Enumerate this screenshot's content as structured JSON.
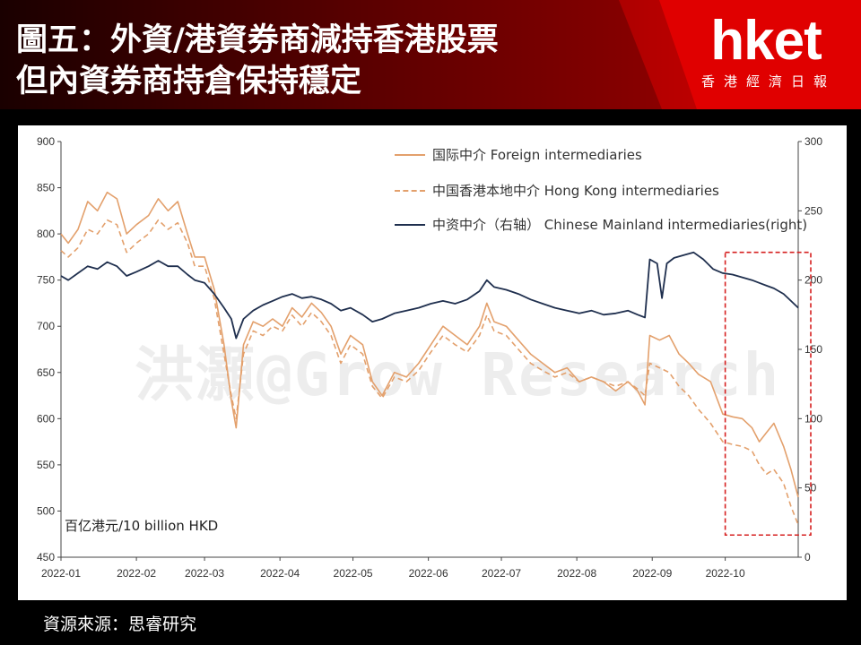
{
  "header": {
    "title_line1": "圖五：外資/港資券商減持香港股票",
    "title_line2": "但內資券商持倉保持穩定",
    "logo_text": "hket",
    "logo_subtitle": "香港經濟日報"
  },
  "footer": {
    "source": "資源來源：思睿研究"
  },
  "watermark": "洪灝@Grow Research",
  "colors": {
    "foreign": "#e3a06c",
    "hongkong": "#e3a06c",
    "mainland": "#1f2f4e",
    "highlight_box": "#d62020"
  },
  "chart_data": {
    "type": "line",
    "unit_label": "百亿港元/10 billion HKD",
    "x_ticks": [
      "2022-01",
      "2022-02",
      "2022-03",
      "2022-04",
      "2022-05",
      "2022-06",
      "2022-07",
      "2022-08",
      "2022-09",
      "2022-10"
    ],
    "xlim": [
      "2022-01-01",
      "2022-10-31"
    ],
    "ylim_left": [
      450,
      900
    ],
    "y_ticks_left": [
      450,
      500,
      550,
      600,
      650,
      700,
      750,
      800,
      850,
      900
    ],
    "ylim_right": [
      0,
      300
    ],
    "y_ticks_right": [
      0,
      50,
      100,
      150,
      200,
      250,
      300
    ],
    "grid": false,
    "legend_position": "top-center",
    "highlight_region": {
      "x_start": "2022-10-01",
      "x_end": "2022-10-31"
    },
    "series": [
      {
        "name": "国际中介 Foreign intermediaries",
        "axis": "left",
        "style": "solid",
        "points": [
          [
            "2022-01-01",
            800
          ],
          [
            "2022-01-04",
            790
          ],
          [
            "2022-01-08",
            805
          ],
          [
            "2022-01-12",
            835
          ],
          [
            "2022-01-16",
            825
          ],
          [
            "2022-01-20",
            845
          ],
          [
            "2022-01-24",
            838
          ],
          [
            "2022-01-28",
            800
          ],
          [
            "2022-02-01",
            810
          ],
          [
            "2022-02-06",
            820
          ],
          [
            "2022-02-10",
            838
          ],
          [
            "2022-02-14",
            825
          ],
          [
            "2022-02-18",
            835
          ],
          [
            "2022-02-22",
            800
          ],
          [
            "2022-02-25",
            775
          ],
          [
            "2022-03-01",
            775
          ],
          [
            "2022-03-05",
            740
          ],
          [
            "2022-03-09",
            680
          ],
          [
            "2022-03-12",
            620
          ],
          [
            "2022-03-14",
            590
          ],
          [
            "2022-03-17",
            680
          ],
          [
            "2022-03-21",
            705
          ],
          [
            "2022-03-25",
            700
          ],
          [
            "2022-03-29",
            708
          ],
          [
            "2022-04-02",
            700
          ],
          [
            "2022-04-06",
            720
          ],
          [
            "2022-04-10",
            710
          ],
          [
            "2022-04-14",
            725
          ],
          [
            "2022-04-18",
            715
          ],
          [
            "2022-04-22",
            700
          ],
          [
            "2022-04-26",
            670
          ],
          [
            "2022-04-30",
            690
          ],
          [
            "2022-05-05",
            680
          ],
          [
            "2022-05-09",
            640
          ],
          [
            "2022-05-13",
            625
          ],
          [
            "2022-05-18",
            650
          ],
          [
            "2022-05-23",
            645
          ],
          [
            "2022-05-28",
            660
          ],
          [
            "2022-06-02",
            680
          ],
          [
            "2022-06-07",
            700
          ],
          [
            "2022-06-12",
            690
          ],
          [
            "2022-06-17",
            680
          ],
          [
            "2022-06-22",
            700
          ],
          [
            "2022-06-25",
            725
          ],
          [
            "2022-06-28",
            705
          ],
          [
            "2022-07-03",
            700
          ],
          [
            "2022-07-08",
            685
          ],
          [
            "2022-07-13",
            670
          ],
          [
            "2022-07-18",
            660
          ],
          [
            "2022-07-23",
            650
          ],
          [
            "2022-07-28",
            655
          ],
          [
            "2022-08-02",
            640
          ],
          [
            "2022-08-07",
            645
          ],
          [
            "2022-08-12",
            640
          ],
          [
            "2022-08-17",
            630
          ],
          [
            "2022-08-22",
            640
          ],
          [
            "2022-08-26",
            630
          ],
          [
            "2022-08-29",
            615
          ],
          [
            "2022-08-31",
            690
          ],
          [
            "2022-09-04",
            685
          ],
          [
            "2022-09-08",
            690
          ],
          [
            "2022-09-12",
            670
          ],
          [
            "2022-09-16",
            660
          ],
          [
            "2022-09-20",
            648
          ],
          [
            "2022-09-25",
            640
          ],
          [
            "2022-09-30",
            605
          ],
          [
            "2022-10-04",
            602
          ],
          [
            "2022-10-08",
            600
          ],
          [
            "2022-10-12",
            590
          ],
          [
            "2022-10-15",
            575
          ],
          [
            "2022-10-18",
            585
          ],
          [
            "2022-10-21",
            595
          ],
          [
            "2022-10-25",
            570
          ],
          [
            "2022-10-28",
            545
          ],
          [
            "2022-10-31",
            515
          ]
        ]
      },
      {
        "name": "中国香港本地中介 Hong Kong intermediaries",
        "axis": "left",
        "style": "dashed",
        "points": [
          [
            "2022-01-01",
            782
          ],
          [
            "2022-01-04",
            775
          ],
          [
            "2022-01-08",
            785
          ],
          [
            "2022-01-12",
            805
          ],
          [
            "2022-01-16",
            800
          ],
          [
            "2022-01-20",
            815
          ],
          [
            "2022-01-24",
            810
          ],
          [
            "2022-01-28",
            780
          ],
          [
            "2022-02-01",
            790
          ],
          [
            "2022-02-06",
            800
          ],
          [
            "2022-02-10",
            815
          ],
          [
            "2022-02-14",
            805
          ],
          [
            "2022-02-18",
            812
          ],
          [
            "2022-02-22",
            790
          ],
          [
            "2022-02-25",
            765
          ],
          [
            "2022-03-01",
            765
          ],
          [
            "2022-03-05",
            730
          ],
          [
            "2022-03-09",
            670
          ],
          [
            "2022-03-12",
            625
          ],
          [
            "2022-03-14",
            600
          ],
          [
            "2022-03-17",
            670
          ],
          [
            "2022-03-21",
            695
          ],
          [
            "2022-03-25",
            690
          ],
          [
            "2022-03-29",
            700
          ],
          [
            "2022-04-02",
            695
          ],
          [
            "2022-04-06",
            712
          ],
          [
            "2022-04-10",
            700
          ],
          [
            "2022-04-14",
            715
          ],
          [
            "2022-04-18",
            705
          ],
          [
            "2022-04-22",
            690
          ],
          [
            "2022-04-26",
            660
          ],
          [
            "2022-04-30",
            680
          ],
          [
            "2022-05-05",
            670
          ],
          [
            "2022-05-09",
            635
          ],
          [
            "2022-05-13",
            622
          ],
          [
            "2022-05-18",
            645
          ],
          [
            "2022-05-23",
            640
          ],
          [
            "2022-05-28",
            652
          ],
          [
            "2022-06-02",
            672
          ],
          [
            "2022-06-07",
            690
          ],
          [
            "2022-06-12",
            680
          ],
          [
            "2022-06-17",
            672
          ],
          [
            "2022-06-22",
            690
          ],
          [
            "2022-06-25",
            712
          ],
          [
            "2022-06-28",
            695
          ],
          [
            "2022-07-03",
            690
          ],
          [
            "2022-07-08",
            675
          ],
          [
            "2022-07-13",
            660
          ],
          [
            "2022-07-18",
            652
          ],
          [
            "2022-07-23",
            645
          ],
          [
            "2022-07-28",
            650
          ],
          [
            "2022-08-02",
            640
          ],
          [
            "2022-08-07",
            645
          ],
          [
            "2022-08-12",
            640
          ],
          [
            "2022-08-17",
            635
          ],
          [
            "2022-08-22",
            640
          ],
          [
            "2022-08-26",
            632
          ],
          [
            "2022-08-29",
            625
          ],
          [
            "2022-08-31",
            660
          ],
          [
            "2022-09-04",
            655
          ],
          [
            "2022-09-08",
            650
          ],
          [
            "2022-09-12",
            635
          ],
          [
            "2022-09-16",
            625
          ],
          [
            "2022-09-20",
            610
          ],
          [
            "2022-09-25",
            595
          ],
          [
            "2022-09-30",
            575
          ],
          [
            "2022-10-04",
            572
          ],
          [
            "2022-10-08",
            570
          ],
          [
            "2022-10-12",
            565
          ],
          [
            "2022-10-15",
            550
          ],
          [
            "2022-10-18",
            540
          ],
          [
            "2022-10-21",
            545
          ],
          [
            "2022-10-25",
            530
          ],
          [
            "2022-10-28",
            505
          ],
          [
            "2022-10-31",
            485
          ]
        ]
      },
      {
        "name": "中资中介（右轴） Chinese Mainland intermediaries(right)",
        "axis": "right",
        "style": "solid",
        "points": [
          [
            "2022-01-01",
            203
          ],
          [
            "2022-01-04",
            200
          ],
          [
            "2022-01-08",
            205
          ],
          [
            "2022-01-12",
            210
          ],
          [
            "2022-01-16",
            208
          ],
          [
            "2022-01-20",
            213
          ],
          [
            "2022-01-24",
            210
          ],
          [
            "2022-01-28",
            203
          ],
          [
            "2022-02-01",
            206
          ],
          [
            "2022-02-06",
            210
          ],
          [
            "2022-02-10",
            214
          ],
          [
            "2022-02-14",
            210
          ],
          [
            "2022-02-18",
            210
          ],
          [
            "2022-02-22",
            204
          ],
          [
            "2022-02-25",
            200
          ],
          [
            "2022-03-01",
            198
          ],
          [
            "2022-03-05",
            190
          ],
          [
            "2022-03-09",
            180
          ],
          [
            "2022-03-12",
            172
          ],
          [
            "2022-03-14",
            158
          ],
          [
            "2022-03-17",
            172
          ],
          [
            "2022-03-21",
            178
          ],
          [
            "2022-03-25",
            182
          ],
          [
            "2022-03-29",
            185
          ],
          [
            "2022-04-02",
            188
          ],
          [
            "2022-04-06",
            190
          ],
          [
            "2022-04-10",
            187
          ],
          [
            "2022-04-14",
            188
          ],
          [
            "2022-04-18",
            186
          ],
          [
            "2022-04-22",
            183
          ],
          [
            "2022-04-26",
            178
          ],
          [
            "2022-04-30",
            180
          ],
          [
            "2022-05-05",
            175
          ],
          [
            "2022-05-09",
            170
          ],
          [
            "2022-05-13",
            172
          ],
          [
            "2022-05-18",
            176
          ],
          [
            "2022-05-23",
            178
          ],
          [
            "2022-05-28",
            180
          ],
          [
            "2022-06-02",
            183
          ],
          [
            "2022-06-07",
            185
          ],
          [
            "2022-06-12",
            183
          ],
          [
            "2022-06-17",
            186
          ],
          [
            "2022-06-22",
            192
          ],
          [
            "2022-06-25",
            200
          ],
          [
            "2022-06-28",
            195
          ],
          [
            "2022-07-03",
            193
          ],
          [
            "2022-07-08",
            190
          ],
          [
            "2022-07-13",
            186
          ],
          [
            "2022-07-18",
            183
          ],
          [
            "2022-07-23",
            180
          ],
          [
            "2022-07-28",
            178
          ],
          [
            "2022-08-02",
            176
          ],
          [
            "2022-08-07",
            178
          ],
          [
            "2022-08-12",
            175
          ],
          [
            "2022-08-17",
            176
          ],
          [
            "2022-08-22",
            178
          ],
          [
            "2022-08-26",
            175
          ],
          [
            "2022-08-29",
            173
          ],
          [
            "2022-08-31",
            215
          ],
          [
            "2022-09-03",
            212
          ],
          [
            "2022-09-05",
            187
          ],
          [
            "2022-09-07",
            212
          ],
          [
            "2022-09-10",
            216
          ],
          [
            "2022-09-14",
            218
          ],
          [
            "2022-09-18",
            220
          ],
          [
            "2022-09-22",
            215
          ],
          [
            "2022-09-26",
            208
          ],
          [
            "2022-09-30",
            205
          ],
          [
            "2022-10-04",
            204
          ],
          [
            "2022-10-08",
            202
          ],
          [
            "2022-10-12",
            200
          ],
          [
            "2022-10-15",
            198
          ],
          [
            "2022-10-18",
            196
          ],
          [
            "2022-10-21",
            194
          ],
          [
            "2022-10-25",
            190
          ],
          [
            "2022-10-28",
            185
          ],
          [
            "2022-10-31",
            180
          ]
        ]
      }
    ]
  }
}
